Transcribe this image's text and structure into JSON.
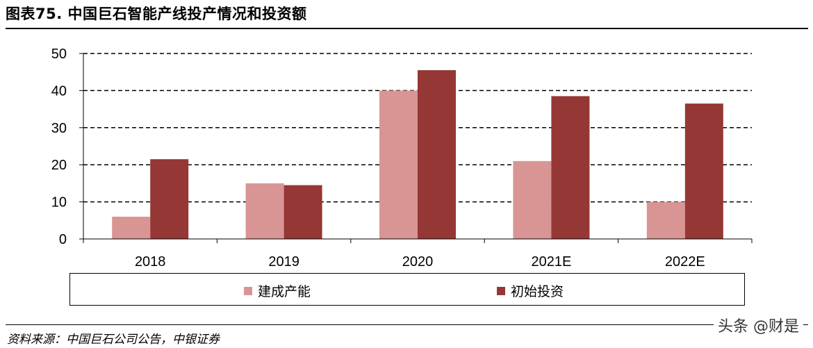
{
  "header": {
    "title": "图表75. 中国巨石智能产线投产情况和投资额"
  },
  "footer": {
    "source": "资料来源：中国巨石公司公告，中银证券",
    "watermark": "头条 @财是"
  },
  "colors": {
    "series_capacity": "#d99594",
    "series_investment": "#953735"
  },
  "chart_data": {
    "type": "bar",
    "categories": [
      "2018",
      "2019",
      "2020",
      "2021E",
      "2022E"
    ],
    "series": [
      {
        "name": "建成产能",
        "values": [
          6,
          15,
          40,
          21,
          10
        ]
      },
      {
        "name": "初始投资",
        "values": [
          21.5,
          14.5,
          45.5,
          38.5,
          36.5
        ]
      }
    ],
    "ylim": [
      0,
      50
    ],
    "yticks": [
      "0",
      "10",
      "20",
      "30",
      "40",
      "50"
    ],
    "grid": true,
    "legend": "bottom"
  }
}
